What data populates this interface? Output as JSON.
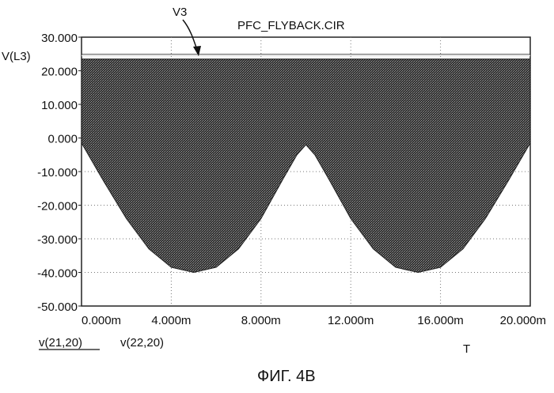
{
  "chart_data": {
    "type": "area",
    "title": "PFC_FLYBACK.CIR",
    "ylabel": "V(L3)",
    "xlabel": "T",
    "annotation": "V3",
    "caption": "ФИГ. 4В",
    "legend": [
      "v(21,20)",
      "v(22,20)"
    ],
    "ylim": [
      -50,
      30
    ],
    "xlim": [
      0,
      20
    ],
    "y_ticks": [
      "30.000",
      "20.000",
      "10.000",
      "0.000",
      "-10.000",
      "-20.000",
      "-30.000",
      "-40.000",
      "-50.000"
    ],
    "y_tick_values": [
      30,
      20,
      10,
      0,
      -10,
      -20,
      -30,
      -40,
      -50
    ],
    "x_ticks": [
      "0.000m",
      "4.000m",
      "8.000m",
      "12.000m",
      "16.000m",
      "20.000m"
    ],
    "x_tick_values": [
      0,
      4,
      8,
      12,
      16,
      20
    ],
    "grid": true,
    "series": [
      {
        "name": "v(21,20)",
        "style": "filled envelope (high-frequency switching)",
        "x": [
          0,
          1,
          2,
          3,
          4,
          5,
          6,
          7,
          8,
          9,
          9.6,
          10,
          10.4,
          11,
          12,
          13,
          14,
          15,
          16,
          17,
          18,
          19,
          20
        ],
        "upper": [
          23.5,
          23.5,
          23.5,
          23.5,
          23.5,
          23.5,
          23.5,
          23.5,
          23.5,
          23.5,
          23.5,
          23.5,
          23.5,
          23.5,
          23.5,
          23.5,
          23.5,
          23.5,
          23.5,
          23.5,
          23.5,
          23.5,
          23.5
        ],
        "lower": [
          -1.5,
          -13,
          -24,
          -33,
          -38.5,
          -40,
          -38.5,
          -33,
          -24,
          -12,
          -5,
          -2,
          -5,
          -12,
          -24,
          -33,
          -38.5,
          -40,
          -38.5,
          -33,
          -24,
          -13,
          -1.5
        ]
      },
      {
        "name": "v(22,20)",
        "style": "line",
        "x": [
          0,
          20
        ],
        "y": [
          24.5,
          24.5
        ]
      }
    ]
  }
}
